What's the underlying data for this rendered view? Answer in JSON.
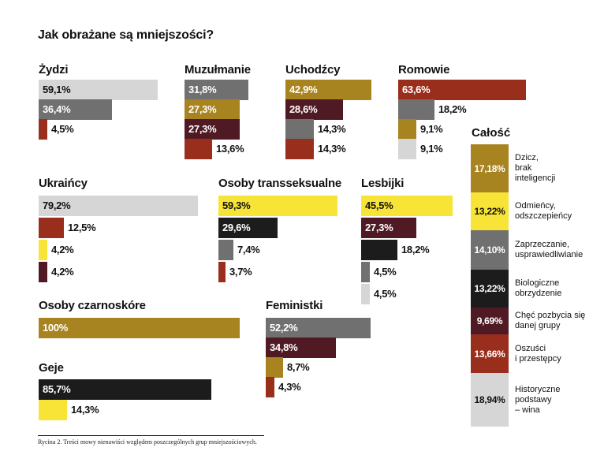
{
  "title": "Jak obrażane są mniejszości?",
  "caption": "Rycina 2. Treści mowy nienawiści względem poszczególnych grup mniejszościowych.",
  "colors": {
    "gold": "#a88420",
    "yellow": "#f8e436",
    "gray": "#707070",
    "lightgray": "#d6d6d6",
    "black": "#1c1c1c",
    "maroon": "#4f1a24",
    "red": "#9a2e1c"
  },
  "chart_data": [
    {
      "type": "bar",
      "title": "Żydzi",
      "values": [
        {
          "value": 59.1,
          "label": "59,1%",
          "color": "lightgray"
        },
        {
          "value": 36.4,
          "label": "36,4%",
          "color": "gray"
        },
        {
          "value": 4.5,
          "label": "4,5%",
          "color": "red"
        }
      ]
    },
    {
      "type": "bar",
      "title": "Muzułmanie",
      "values": [
        {
          "value": 31.8,
          "label": "31,8%",
          "color": "gray"
        },
        {
          "value": 27.3,
          "label": "27,3%",
          "color": "gold"
        },
        {
          "value": 27.3,
          "label": "27,3%",
          "color": "maroon"
        },
        {
          "value": 13.6,
          "label": "13,6%",
          "color": "red"
        }
      ]
    },
    {
      "type": "bar",
      "title": "Uchodźcy",
      "values": [
        {
          "value": 42.9,
          "label": "42,9%",
          "color": "gold"
        },
        {
          "value": 28.6,
          "label": "28,6%",
          "color": "maroon"
        },
        {
          "value": 14.3,
          "label": "14,3%",
          "color": "gray"
        },
        {
          "value": 14.3,
          "label": "14,3%",
          "color": "red"
        }
      ]
    },
    {
      "type": "bar",
      "title": "Romowie",
      "values": [
        {
          "value": 63.6,
          "label": "63,6%",
          "color": "red"
        },
        {
          "value": 18.2,
          "label": "18,2%",
          "color": "gray"
        },
        {
          "value": 9.1,
          "label": "9,1%",
          "color": "gold"
        },
        {
          "value": 9.1,
          "label": "9,1%",
          "color": "lightgray"
        }
      ]
    },
    {
      "type": "bar",
      "title": "Ukraińcy",
      "values": [
        {
          "value": 79.2,
          "label": "79,2%",
          "color": "lightgray"
        },
        {
          "value": 12.5,
          "label": "12,5%",
          "color": "red"
        },
        {
          "value": 4.2,
          "label": "4,2%",
          "color": "yellow"
        },
        {
          "value": 4.2,
          "label": "4,2%",
          "color": "maroon"
        }
      ]
    },
    {
      "type": "bar",
      "title": "Osoby transseksualne",
      "values": [
        {
          "value": 59.3,
          "label": "59,3%",
          "color": "yellow"
        },
        {
          "value": 29.6,
          "label": "29,6%",
          "color": "black"
        },
        {
          "value": 7.4,
          "label": "7,4%",
          "color": "gray"
        },
        {
          "value": 3.7,
          "label": "3,7%",
          "color": "red"
        }
      ]
    },
    {
      "type": "bar",
      "title": "Lesbijki",
      "values": [
        {
          "value": 45.5,
          "label": "45,5%",
          "color": "yellow"
        },
        {
          "value": 27.3,
          "label": "27,3%",
          "color": "maroon"
        },
        {
          "value": 18.2,
          "label": "18,2%",
          "color": "black"
        },
        {
          "value": 4.5,
          "label": "4,5%",
          "color": "gray"
        },
        {
          "value": 4.5,
          "label": "4,5%",
          "color": "lightgray"
        }
      ]
    },
    {
      "type": "bar",
      "title": "Osoby czarnoskóre",
      "values": [
        {
          "value": 100,
          "label": "100%",
          "color": "gold"
        }
      ]
    },
    {
      "type": "bar",
      "title": "Feministki",
      "values": [
        {
          "value": 52.2,
          "label": "52,2%",
          "color": "gray"
        },
        {
          "value": 34.8,
          "label": "34,8%",
          "color": "maroon"
        },
        {
          "value": 8.7,
          "label": "8,7%",
          "color": "gold"
        },
        {
          "value": 4.3,
          "label": "4,3%",
          "color": "red"
        }
      ]
    },
    {
      "type": "bar",
      "title": "Geje",
      "values": [
        {
          "value": 85.7,
          "label": "85,7%",
          "color": "black"
        },
        {
          "value": 14.3,
          "label": "14,3%",
          "color": "yellow"
        }
      ]
    },
    {
      "type": "stacked-bar",
      "title": "Całość",
      "values": [
        {
          "value": 17.18,
          "label": "17,18%",
          "desc": "Dzicz,\nbrak\ninteligencji",
          "color": "gold"
        },
        {
          "value": 13.22,
          "label": "13,22%",
          "desc": "Odmieńcy,\nodszczepieńcy",
          "color": "yellow"
        },
        {
          "value": 14.1,
          "label": "14,10%",
          "desc": "Zaprzeczanie,\nusprawiedliwianie",
          "color": "gray"
        },
        {
          "value": 13.22,
          "label": "13,22%",
          "desc": "Biologiczne\nobrzydzenie",
          "color": "black"
        },
        {
          "value": 9.69,
          "label": "9,69%",
          "desc": "Chęć pozbycia się\ndanej grupy",
          "color": "maroon"
        },
        {
          "value": 13.66,
          "label": "13,66%",
          "desc": "Oszuści\ni przestępcy",
          "color": "red"
        },
        {
          "value": 18.94,
          "label": "18,94%",
          "desc": "Historyczne\npodstawy\n– wina",
          "color": "lightgray"
        }
      ]
    }
  ]
}
